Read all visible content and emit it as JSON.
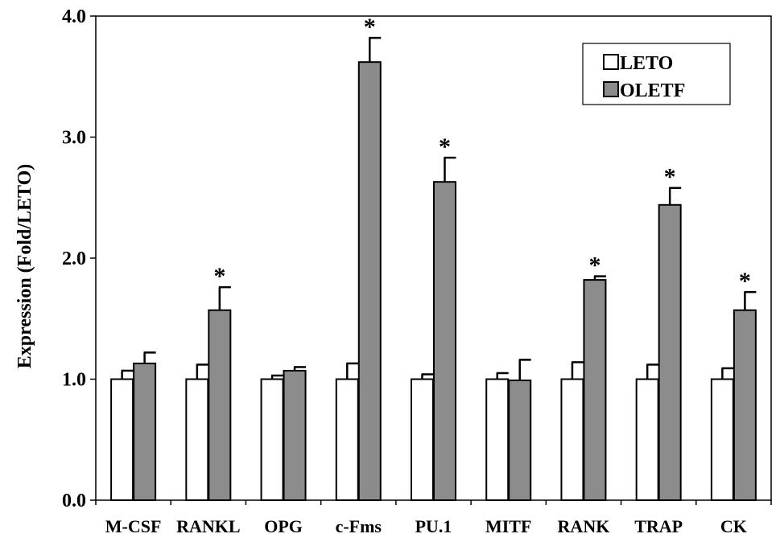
{
  "chart_data": {
    "type": "bar",
    "title": "",
    "xlabel": "",
    "ylabel": "Expression (Fold/LETO)",
    "ylim": [
      0,
      4
    ],
    "yticks": [
      "0.0",
      "1.0",
      "2.0",
      "3.0",
      "4.0"
    ],
    "categories": [
      "M-CSF",
      "RANKL",
      "OPG",
      "c-Fms",
      "PU.1",
      "MITF",
      "RANK",
      "TRAP",
      "CK"
    ],
    "series": [
      {
        "name": "LETO",
        "color": "#ffffff",
        "values": [
          1.0,
          1.0,
          1.0,
          1.0,
          1.0,
          1.0,
          1.0,
          1.0,
          1.0
        ],
        "errors": [
          0.07,
          0.12,
          0.03,
          0.13,
          0.04,
          0.05,
          0.14,
          0.12,
          0.09
        ]
      },
      {
        "name": "OLETF",
        "color": "#8c8c8c",
        "values": [
          1.13,
          1.57,
          1.07,
          3.62,
          2.63,
          0.99,
          1.82,
          2.44,
          1.57
        ],
        "errors": [
          0.09,
          0.19,
          0.03,
          0.2,
          0.2,
          0.17,
          0.03,
          0.14,
          0.15
        ]
      }
    ],
    "significance": [
      "",
      "*",
      "",
      "*",
      "*",
      "",
      "*",
      "*",
      "*"
    ],
    "legend": {
      "position": "top-right",
      "entries": [
        "LETO",
        "OLETF"
      ]
    },
    "grid": false
  }
}
